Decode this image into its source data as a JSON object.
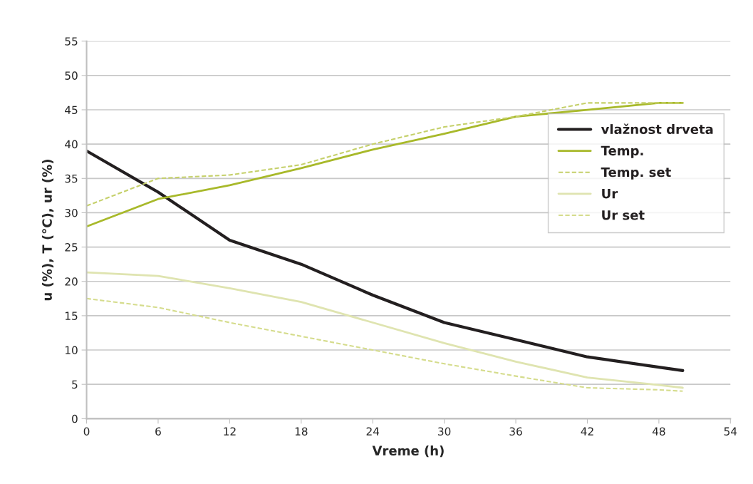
{
  "chart_data": {
    "type": "line",
    "xlabel": "Vreme (h)",
    "ylabel": "u (%), T (°C), ur (%)",
    "x": [
      0,
      6,
      12,
      18,
      24,
      30,
      36,
      42,
      48,
      50
    ],
    "series": [
      {
        "name": "vlažnost drveta",
        "color": "#231f20",
        "line_style": "solid",
        "values": [
          39,
          33,
          26,
          22.5,
          18,
          14,
          11.5,
          9,
          7.5,
          7
        ]
      },
      {
        "name": "Temp.",
        "color": "#a8b92a",
        "line_style": "solid",
        "values": [
          28,
          32,
          34,
          36.5,
          39.2,
          41.5,
          44,
          45,
          46,
          46
        ]
      },
      {
        "name": "Temp. set",
        "color": "#c5d06a",
        "line_style": "dashed",
        "values": [
          31,
          35,
          35.5,
          37,
          40,
          42.5,
          44,
          46,
          46,
          46
        ]
      },
      {
        "name": "Ur",
        "color": "#dfe4b0",
        "line_style": "solid",
        "values": [
          21.3,
          20.8,
          19,
          17,
          14,
          11,
          8.3,
          6,
          4.9,
          4.5
        ]
      },
      {
        "name": "Ur set",
        "color": "#d5dc8c",
        "line_style": "dashed",
        "values": [
          17.5,
          16.2,
          14,
          12,
          10,
          8,
          6.2,
          4.5,
          4.2,
          4
        ]
      }
    ],
    "xlim": [
      0,
      54
    ],
    "xticks": [
      0,
      6,
      12,
      18,
      24,
      30,
      36,
      42,
      48,
      54
    ],
    "ylim": [
      0,
      55
    ],
    "yticks": [
      0,
      5,
      10,
      15,
      20,
      25,
      30,
      35,
      40,
      45,
      50,
      55
    ],
    "grid": "y",
    "legend": "right"
  }
}
